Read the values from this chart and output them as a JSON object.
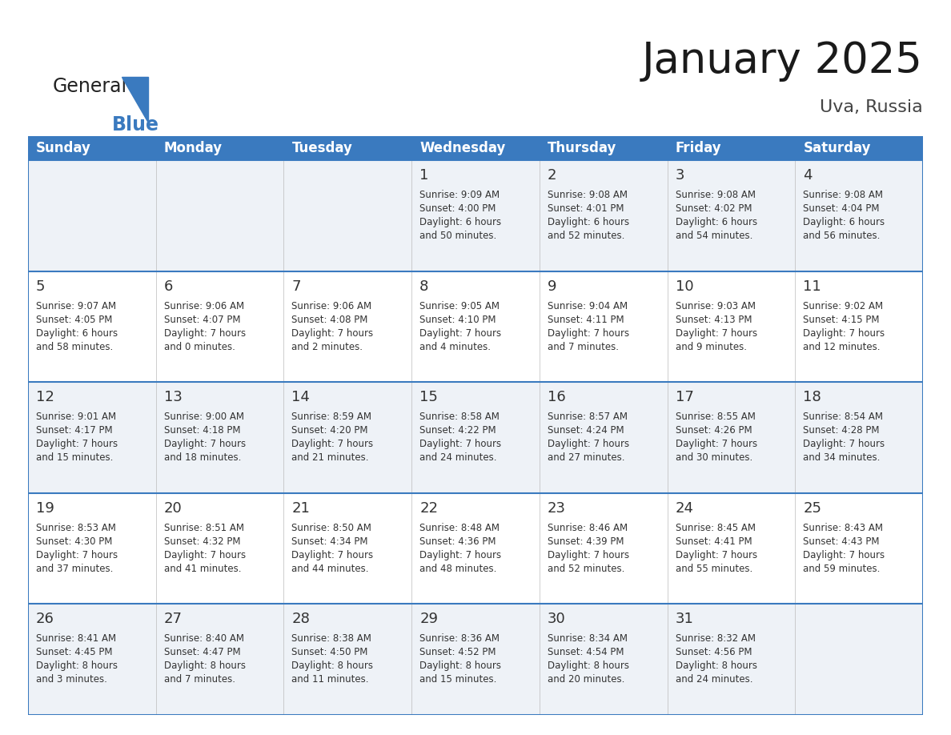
{
  "title": "January 2025",
  "subtitle": "Uva, Russia",
  "header_bg": "#3a7abf",
  "header_text": "#ffffff",
  "cell_bg_odd": "#eef2f7",
  "cell_bg_even": "#ffffff",
  "border_color": "#3a7abf",
  "text_color": "#333333",
  "day_names": [
    "Sunday",
    "Monday",
    "Tuesday",
    "Wednesday",
    "Thursday",
    "Friday",
    "Saturday"
  ],
  "days": [
    {
      "day": 1,
      "col": 3,
      "row": 0,
      "sunrise": "9:09 AM",
      "sunset": "4:00 PM",
      "daylight": "6 hours\nand 50 minutes."
    },
    {
      "day": 2,
      "col": 4,
      "row": 0,
      "sunrise": "9:08 AM",
      "sunset": "4:01 PM",
      "daylight": "6 hours\nand 52 minutes."
    },
    {
      "day": 3,
      "col": 5,
      "row": 0,
      "sunrise": "9:08 AM",
      "sunset": "4:02 PM",
      "daylight": "6 hours\nand 54 minutes."
    },
    {
      "day": 4,
      "col": 6,
      "row": 0,
      "sunrise": "9:08 AM",
      "sunset": "4:04 PM",
      "daylight": "6 hours\nand 56 minutes."
    },
    {
      "day": 5,
      "col": 0,
      "row": 1,
      "sunrise": "9:07 AM",
      "sunset": "4:05 PM",
      "daylight": "6 hours\nand 58 minutes."
    },
    {
      "day": 6,
      "col": 1,
      "row": 1,
      "sunrise": "9:06 AM",
      "sunset": "4:07 PM",
      "daylight": "7 hours\nand 0 minutes."
    },
    {
      "day": 7,
      "col": 2,
      "row": 1,
      "sunrise": "9:06 AM",
      "sunset": "4:08 PM",
      "daylight": "7 hours\nand 2 minutes."
    },
    {
      "day": 8,
      "col": 3,
      "row": 1,
      "sunrise": "9:05 AM",
      "sunset": "4:10 PM",
      "daylight": "7 hours\nand 4 minutes."
    },
    {
      "day": 9,
      "col": 4,
      "row": 1,
      "sunrise": "9:04 AM",
      "sunset": "4:11 PM",
      "daylight": "7 hours\nand 7 minutes."
    },
    {
      "day": 10,
      "col": 5,
      "row": 1,
      "sunrise": "9:03 AM",
      "sunset": "4:13 PM",
      "daylight": "7 hours\nand 9 minutes."
    },
    {
      "day": 11,
      "col": 6,
      "row": 1,
      "sunrise": "9:02 AM",
      "sunset": "4:15 PM",
      "daylight": "7 hours\nand 12 minutes."
    },
    {
      "day": 12,
      "col": 0,
      "row": 2,
      "sunrise": "9:01 AM",
      "sunset": "4:17 PM",
      "daylight": "7 hours\nand 15 minutes."
    },
    {
      "day": 13,
      "col": 1,
      "row": 2,
      "sunrise": "9:00 AM",
      "sunset": "4:18 PM",
      "daylight": "7 hours\nand 18 minutes."
    },
    {
      "day": 14,
      "col": 2,
      "row": 2,
      "sunrise": "8:59 AM",
      "sunset": "4:20 PM",
      "daylight": "7 hours\nand 21 minutes."
    },
    {
      "day": 15,
      "col": 3,
      "row": 2,
      "sunrise": "8:58 AM",
      "sunset": "4:22 PM",
      "daylight": "7 hours\nand 24 minutes."
    },
    {
      "day": 16,
      "col": 4,
      "row": 2,
      "sunrise": "8:57 AM",
      "sunset": "4:24 PM",
      "daylight": "7 hours\nand 27 minutes."
    },
    {
      "day": 17,
      "col": 5,
      "row": 2,
      "sunrise": "8:55 AM",
      "sunset": "4:26 PM",
      "daylight": "7 hours\nand 30 minutes."
    },
    {
      "day": 18,
      "col": 6,
      "row": 2,
      "sunrise": "8:54 AM",
      "sunset": "4:28 PM",
      "daylight": "7 hours\nand 34 minutes."
    },
    {
      "day": 19,
      "col": 0,
      "row": 3,
      "sunrise": "8:53 AM",
      "sunset": "4:30 PM",
      "daylight": "7 hours\nand 37 minutes."
    },
    {
      "day": 20,
      "col": 1,
      "row": 3,
      "sunrise": "8:51 AM",
      "sunset": "4:32 PM",
      "daylight": "7 hours\nand 41 minutes."
    },
    {
      "day": 21,
      "col": 2,
      "row": 3,
      "sunrise": "8:50 AM",
      "sunset": "4:34 PM",
      "daylight": "7 hours\nand 44 minutes."
    },
    {
      "day": 22,
      "col": 3,
      "row": 3,
      "sunrise": "8:48 AM",
      "sunset": "4:36 PM",
      "daylight": "7 hours\nand 48 minutes."
    },
    {
      "day": 23,
      "col": 4,
      "row": 3,
      "sunrise": "8:46 AM",
      "sunset": "4:39 PM",
      "daylight": "7 hours\nand 52 minutes."
    },
    {
      "day": 24,
      "col": 5,
      "row": 3,
      "sunrise": "8:45 AM",
      "sunset": "4:41 PM",
      "daylight": "7 hours\nand 55 minutes."
    },
    {
      "day": 25,
      "col": 6,
      "row": 3,
      "sunrise": "8:43 AM",
      "sunset": "4:43 PM",
      "daylight": "7 hours\nand 59 minutes."
    },
    {
      "day": 26,
      "col": 0,
      "row": 4,
      "sunrise": "8:41 AM",
      "sunset": "4:45 PM",
      "daylight": "8 hours\nand 3 minutes."
    },
    {
      "day": 27,
      "col": 1,
      "row": 4,
      "sunrise": "8:40 AM",
      "sunset": "4:47 PM",
      "daylight": "8 hours\nand 7 minutes."
    },
    {
      "day": 28,
      "col": 2,
      "row": 4,
      "sunrise": "8:38 AM",
      "sunset": "4:50 PM",
      "daylight": "8 hours\nand 11 minutes."
    },
    {
      "day": 29,
      "col": 3,
      "row": 4,
      "sunrise": "8:36 AM",
      "sunset": "4:52 PM",
      "daylight": "8 hours\nand 15 minutes."
    },
    {
      "day": 30,
      "col": 4,
      "row": 4,
      "sunrise": "8:34 AM",
      "sunset": "4:54 PM",
      "daylight": "8 hours\nand 20 minutes."
    },
    {
      "day": 31,
      "col": 5,
      "row": 4,
      "sunrise": "8:32 AM",
      "sunset": "4:56 PM",
      "daylight": "8 hours\nand 24 minutes."
    }
  ],
  "logo_general_color": "#222222",
  "logo_blue_color": "#3a7abf",
  "logo_triangle_color": "#3a7abf",
  "title_color": "#1a1a1a",
  "subtitle_color": "#444444",
  "title_fontsize": 38,
  "subtitle_fontsize": 16,
  "header_fontsize": 12,
  "day_num_fontsize": 13,
  "cell_text_fontsize": 8.5
}
